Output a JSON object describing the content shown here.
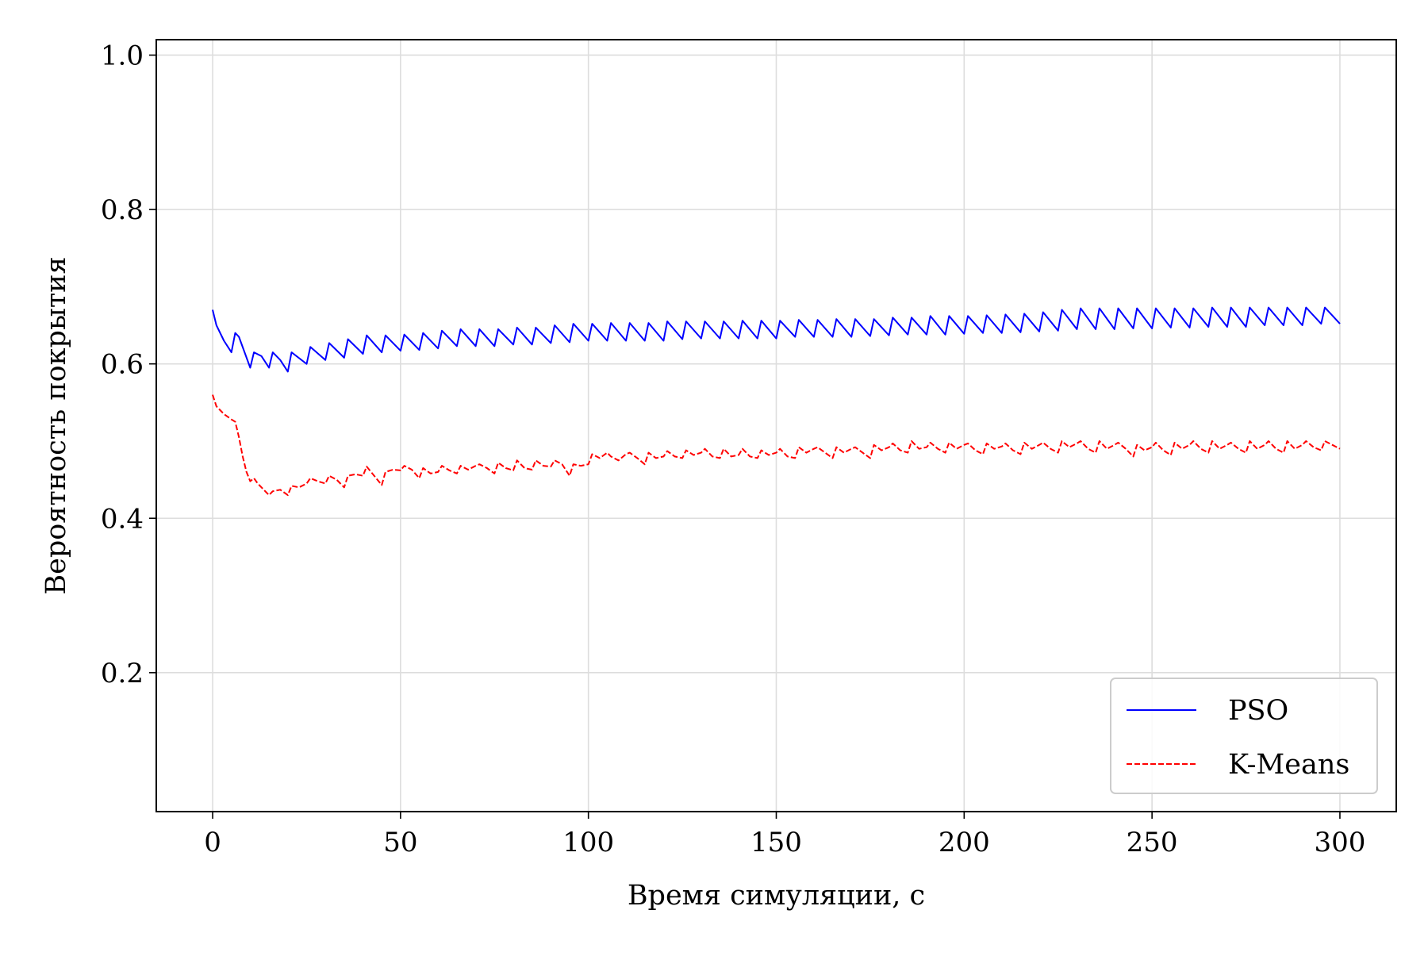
{
  "chart_data": {
    "type": "line",
    "title": "",
    "xlabel": "Время симуляции, с",
    "ylabel": "Вероятность покрытия",
    "xlim": [
      -15,
      315
    ],
    "ylim": [
      0.02,
      1.02
    ],
    "xticks": [
      0,
      50,
      100,
      150,
      200,
      250,
      300
    ],
    "yticks": [
      0.2,
      0.4,
      0.6,
      0.8,
      1.0
    ],
    "xtick_labels": [
      "0",
      "50",
      "100",
      "150",
      "200",
      "250",
      "300"
    ],
    "ytick_labels": [
      "0.2",
      "0.4",
      "0.6",
      "0.8",
      "1.0"
    ],
    "grid": true,
    "legend_position": "bottom-right",
    "series": [
      {
        "name": "PSO",
        "color": "#0000ff",
        "style": "solid",
        "x": [
          0,
          1,
          3,
          5,
          6,
          7,
          10,
          11,
          13,
          15,
          16,
          18,
          20,
          21,
          25,
          26,
          30,
          31,
          35,
          36,
          40,
          41,
          45,
          46,
          50,
          51,
          55,
          56,
          60,
          61,
          65,
          66,
          70,
          71,
          75,
          76,
          80,
          81,
          85,
          86,
          90,
          91,
          95,
          96,
          100,
          101,
          105,
          106,
          110,
          111,
          115,
          116,
          120,
          121,
          125,
          126,
          130,
          131,
          135,
          136,
          140,
          141,
          145,
          146,
          150,
          151,
          155,
          156,
          160,
          161,
          165,
          166,
          170,
          171,
          175,
          176,
          180,
          181,
          185,
          186,
          190,
          191,
          195,
          196,
          200,
          201,
          205,
          206,
          210,
          211,
          215,
          216,
          220,
          221,
          225,
          226,
          230,
          231,
          235,
          236,
          240,
          241,
          245,
          246,
          250,
          251,
          255,
          256,
          260,
          261,
          265,
          266,
          270,
          271,
          275,
          276,
          280,
          281,
          285,
          286,
          290,
          291,
          295,
          296,
          300
        ],
        "y": [
          0.67,
          0.65,
          0.63,
          0.615,
          0.64,
          0.635,
          0.595,
          0.615,
          0.61,
          0.595,
          0.615,
          0.605,
          0.59,
          0.615,
          0.6,
          0.622,
          0.605,
          0.627,
          0.608,
          0.632,
          0.613,
          0.637,
          0.615,
          0.637,
          0.617,
          0.638,
          0.618,
          0.64,
          0.62,
          0.643,
          0.623,
          0.645,
          0.623,
          0.645,
          0.623,
          0.645,
          0.625,
          0.647,
          0.625,
          0.647,
          0.627,
          0.65,
          0.628,
          0.652,
          0.63,
          0.652,
          0.63,
          0.653,
          0.63,
          0.653,
          0.63,
          0.653,
          0.63,
          0.655,
          0.632,
          0.655,
          0.633,
          0.655,
          0.633,
          0.655,
          0.633,
          0.656,
          0.633,
          0.656,
          0.633,
          0.656,
          0.635,
          0.657,
          0.635,
          0.657,
          0.635,
          0.658,
          0.635,
          0.658,
          0.636,
          0.658,
          0.637,
          0.66,
          0.638,
          0.66,
          0.638,
          0.662,
          0.638,
          0.662,
          0.639,
          0.662,
          0.64,
          0.663,
          0.64,
          0.664,
          0.641,
          0.665,
          0.642,
          0.667,
          0.643,
          0.67,
          0.645,
          0.672,
          0.645,
          0.672,
          0.645,
          0.672,
          0.646,
          0.672,
          0.646,
          0.672,
          0.647,
          0.672,
          0.647,
          0.672,
          0.648,
          0.673,
          0.648,
          0.673,
          0.648,
          0.673,
          0.65,
          0.673,
          0.65,
          0.673,
          0.65,
          0.673,
          0.652,
          0.673,
          0.652
        ]
      },
      {
        "name": "K-Means",
        "color": "#ff0000",
        "style": "dashed",
        "x": [
          0,
          1,
          3,
          5,
          6,
          7,
          8,
          9,
          10,
          11,
          12,
          13,
          15,
          16,
          18,
          20,
          21,
          23,
          25,
          26,
          28,
          30,
          31,
          33,
          35,
          36,
          38,
          40,
          41,
          43,
          45,
          46,
          48,
          50,
          51,
          53,
          55,
          56,
          58,
          60,
          61,
          63,
          65,
          66,
          68,
          70,
          71,
          73,
          75,
          76,
          78,
          80,
          81,
          83,
          85,
          86,
          88,
          90,
          91,
          93,
          95,
          96,
          98,
          100,
          101,
          103,
          105,
          106,
          108,
          110,
          111,
          113,
          115,
          116,
          118,
          120,
          121,
          123,
          125,
          126,
          128,
          130,
          131,
          133,
          135,
          136,
          138,
          140,
          141,
          143,
          145,
          146,
          148,
          150,
          151,
          153,
          155,
          156,
          158,
          160,
          161,
          163,
          165,
          166,
          168,
          170,
          171,
          173,
          175,
          176,
          178,
          180,
          181,
          183,
          185,
          186,
          188,
          190,
          191,
          193,
          195,
          196,
          198,
          200,
          201,
          203,
          205,
          206,
          208,
          210,
          211,
          213,
          215,
          216,
          218,
          220,
          221,
          223,
          225,
          226,
          228,
          230,
          231,
          233,
          235,
          236,
          238,
          240,
          241,
          243,
          245,
          246,
          248,
          250,
          251,
          253,
          255,
          256,
          258,
          260,
          261,
          263,
          265,
          266,
          268,
          270,
          271,
          273,
          275,
          276,
          278,
          280,
          281,
          283,
          285,
          286,
          288,
          290,
          291,
          293,
          295,
          296,
          298,
          300
        ],
        "y": [
          0.56,
          0.545,
          0.535,
          0.528,
          0.525,
          0.505,
          0.48,
          0.46,
          0.448,
          0.452,
          0.445,
          0.44,
          0.43,
          0.435,
          0.437,
          0.43,
          0.442,
          0.44,
          0.445,
          0.452,
          0.448,
          0.445,
          0.455,
          0.45,
          0.44,
          0.455,
          0.457,
          0.455,
          0.467,
          0.455,
          0.443,
          0.46,
          0.463,
          0.462,
          0.468,
          0.463,
          0.452,
          0.465,
          0.458,
          0.46,
          0.468,
          0.462,
          0.458,
          0.468,
          0.463,
          0.468,
          0.47,
          0.465,
          0.458,
          0.472,
          0.465,
          0.462,
          0.475,
          0.465,
          0.463,
          0.475,
          0.468,
          0.467,
          0.475,
          0.47,
          0.455,
          0.47,
          0.468,
          0.47,
          0.483,
          0.478,
          0.485,
          0.48,
          0.475,
          0.483,
          0.485,
          0.478,
          0.47,
          0.485,
          0.478,
          0.48,
          0.487,
          0.48,
          0.478,
          0.488,
          0.482,
          0.485,
          0.49,
          0.48,
          0.478,
          0.49,
          0.48,
          0.482,
          0.49,
          0.48,
          0.478,
          0.488,
          0.482,
          0.485,
          0.49,
          0.48,
          0.478,
          0.492,
          0.485,
          0.49,
          0.492,
          0.485,
          0.478,
          0.492,
          0.485,
          0.49,
          0.492,
          0.485,
          0.478,
          0.495,
          0.488,
          0.492,
          0.497,
          0.488,
          0.485,
          0.5,
          0.49,
          0.492,
          0.498,
          0.49,
          0.485,
          0.498,
          0.49,
          0.495,
          0.497,
          0.488,
          0.483,
          0.497,
          0.49,
          0.493,
          0.497,
          0.488,
          0.483,
          0.498,
          0.49,
          0.495,
          0.498,
          0.49,
          0.485,
          0.5,
          0.492,
          0.497,
          0.5,
          0.49,
          0.485,
          0.5,
          0.49,
          0.495,
          0.498,
          0.49,
          0.48,
          0.495,
          0.488,
          0.492,
          0.498,
          0.488,
          0.482,
          0.498,
          0.49,
          0.495,
          0.5,
          0.49,
          0.485,
          0.5,
          0.49,
          0.495,
          0.498,
          0.49,
          0.485,
          0.5,
          0.49,
          0.495,
          0.5,
          0.49,
          0.485,
          0.5,
          0.49,
          0.495,
          0.5,
          0.492,
          0.488,
          0.5,
          0.495,
          0.49
        ]
      }
    ]
  }
}
